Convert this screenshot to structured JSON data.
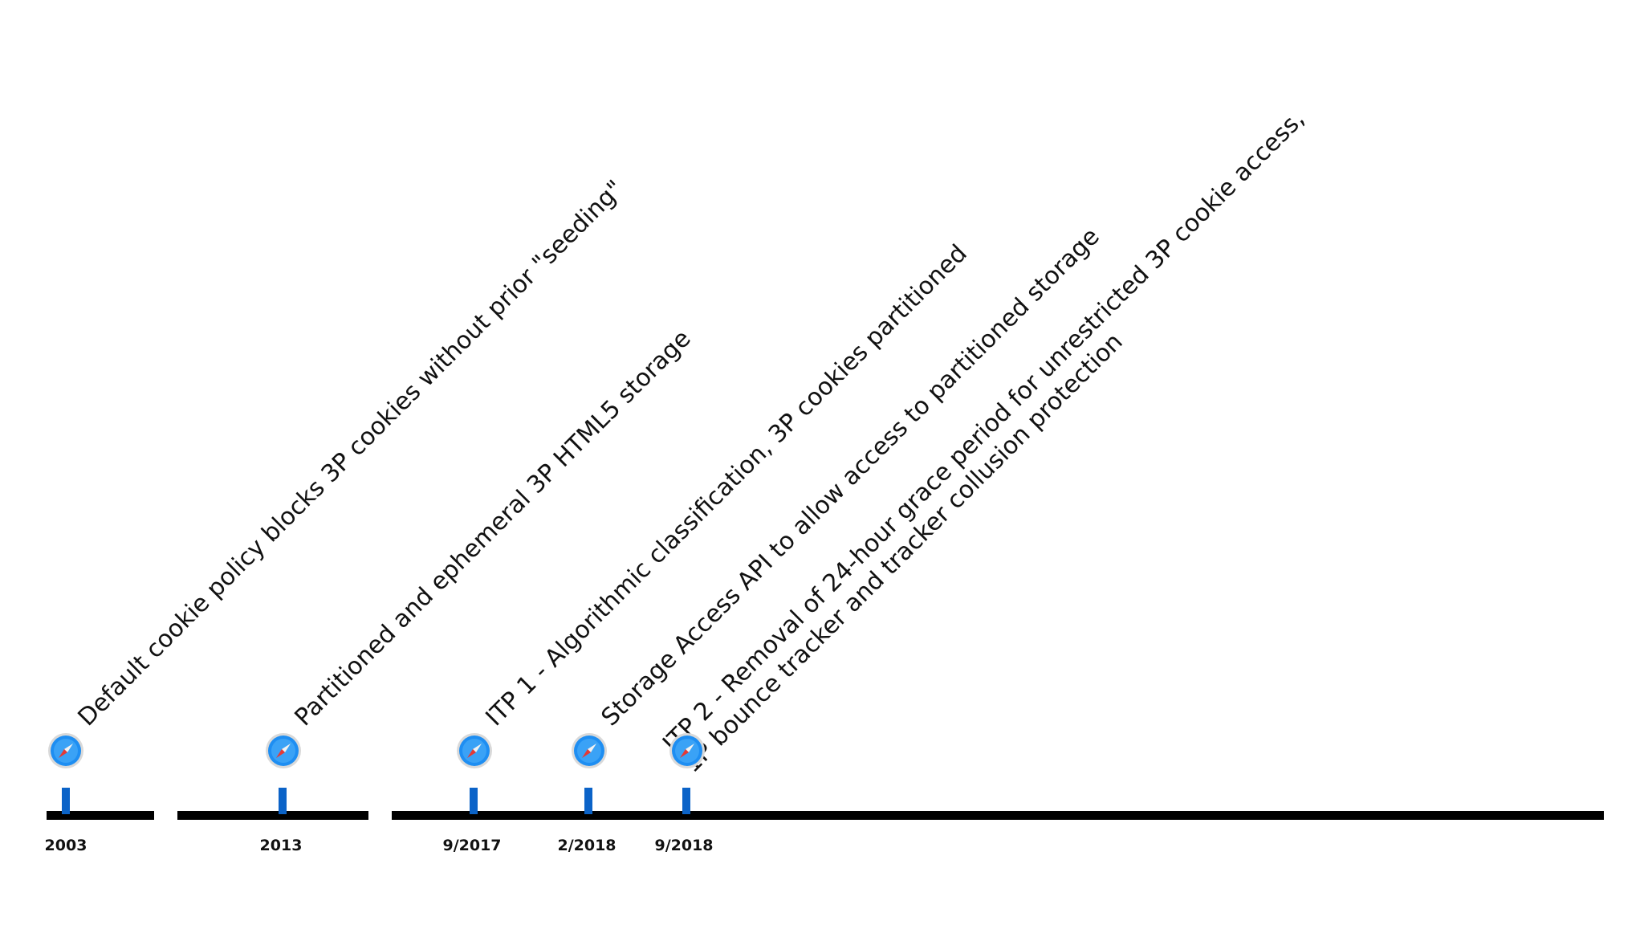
{
  "timeline": {
    "accent_color": "#0b63c8",
    "axis_color": "#000000",
    "events": [
      {
        "date": "2003",
        "text": "Default cookie policy blocks 3P cookies without prior \"seeding\"",
        "icon": "safari-compass-icon"
      },
      {
        "date": "2013",
        "text": "Partitioned and ephemeral 3P HTML5 storage",
        "icon": "safari-compass-icon"
      },
      {
        "date": "9/2017",
        "text": "ITP 1 - Algorithmic classification, 3P cookies partitioned",
        "icon": "safari-compass-icon"
      },
      {
        "date": "2/2018",
        "text": "Storage Access API to allow access to partitioned storage",
        "icon": "safari-compass-icon"
      },
      {
        "date": "9/2018",
        "text": "ITP 2 - Removal of 24-hour grace period for unrestricted 3P cookie access,\n1P bounce tracker and tracker collusion protection",
        "icon": "safari-compass-icon"
      }
    ]
  }
}
